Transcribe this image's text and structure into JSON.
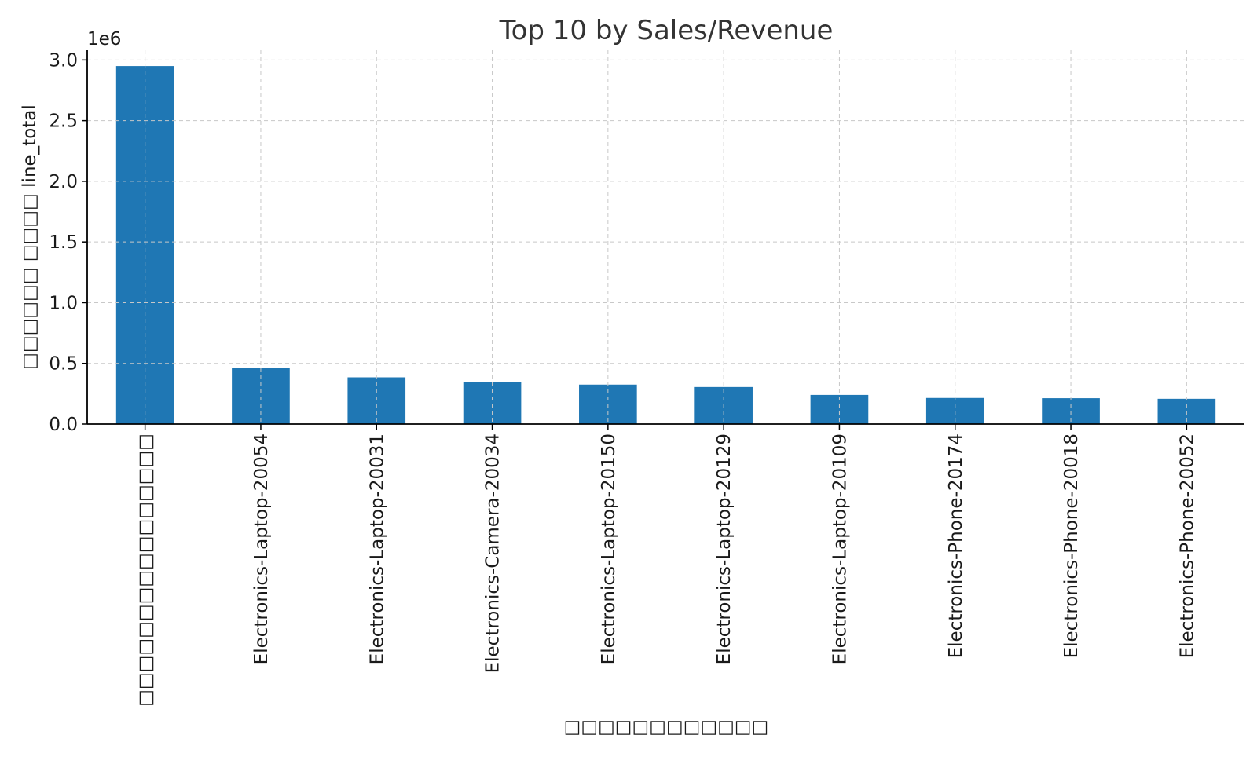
{
  "chart_data": {
    "type": "bar",
    "title": "Top 10 by Sales/Revenue",
    "xlabel": "□□□□□□□□□□□□",
    "ylabel": "□□□□□□ □□□□ line_total",
    "y_offset_label": "1e6",
    "categories": [
      "□□□□□□□□□□□□□□□□",
      "Electronics-Laptop-20054",
      "Electronics-Laptop-20031",
      "Electronics-Camera-20034",
      "Electronics-Laptop-20150",
      "Electronics-Laptop-20129",
      "Electronics-Laptop-20109",
      "Electronics-Phone-20174",
      "Electronics-Phone-20018",
      "Electronics-Phone-20052"
    ],
    "values": [
      2950000,
      465000,
      385000,
      345000,
      325000,
      305000,
      240000,
      215000,
      213000,
      208000
    ],
    "ylim": [
      0,
      3080000
    ],
    "yticks": [
      0,
      500000,
      1000000,
      1500000,
      2000000,
      2500000,
      3000000
    ],
    "ytick_labels": [
      "0.0",
      "0.5",
      "1.0",
      "1.5",
      "2.0",
      "2.5",
      "3.0"
    ],
    "grid": true,
    "bar_color": "#1f77b4",
    "grid_color": "#c8c8c8"
  }
}
